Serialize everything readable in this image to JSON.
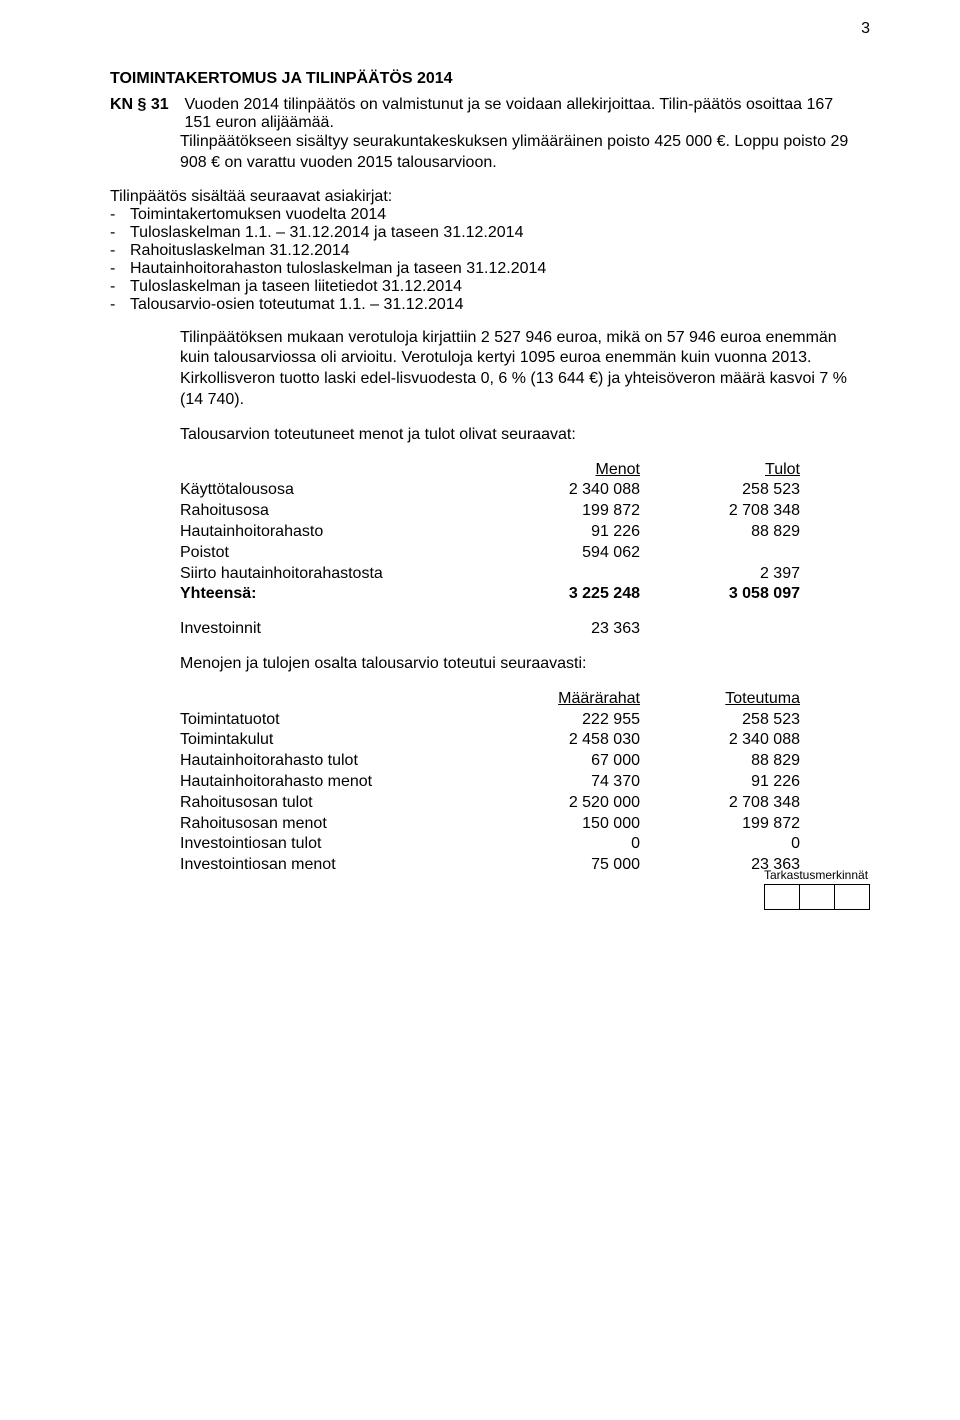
{
  "page_number": "3",
  "heading": "TOIMINTAKERTOMUS JA TILINPÄÄTÖS 2014",
  "kn_label": "KN § 31",
  "para1": "Vuoden 2014 tilinpäätös on valmistunut ja se voidaan allekirjoittaa. Tilin-päätös osoittaa  167 151 euron alijäämää.",
  "para2": "Tilinpäätökseen sisältyy seurakuntakeskuksen ylimääräinen poisto 425 000 €. Loppu poisto 29 908 € on varattu vuoden 2015 talousarvioon.",
  "list_intro": "Tilinpäätös sisältää seuraavat asiakirjat:",
  "list": [
    "Toimintakertomuksen vuodelta 2014",
    "Tuloslaskelman 1.1. – 31.12.2014 ja taseen 31.12.2014",
    "Rahoituslaskelman 31.12.2014",
    "Hautainhoitorahaston tuloslaskelman ja taseen 31.12.2014",
    "Tuloslaskelman ja taseen liitetiedot 31.12.2014",
    "Talousarvio-osien toteutumat 1.1. – 31.12.2014"
  ],
  "para3": "Tilinpäätöksen mukaan verotuloja kirjattiin  2 527 946 euroa, mikä on 57 946 euroa enemmän kuin talousarviossa oli arvioitu. Verotuloja kertyi 1095 euroa enemmän kuin vuonna 2013. Kirkollisveron tuotto laski edel-lisvuodesta 0, 6 % (13 644 €) ja yhteisöveron määrä kasvoi 7 % (14 740).",
  "para4": "Talousarvion toteutuneet menot ja tulot olivat seuraavat:",
  "table1": {
    "head": {
      "c2": "Menot",
      "c3": "Tulot"
    },
    "rows": [
      {
        "c1": "Käyttötalousosa",
        "c2": "2 340 088",
        "c3": "258 523"
      },
      {
        "c1": "Rahoitusosa",
        "c2": "199 872",
        "c3": "2 708 348"
      },
      {
        "c1": "Hautainhoitorahasto",
        "c2": "91 226",
        "c3": "88 829"
      },
      {
        "c1": "Poistot",
        "c2": "594 062",
        "c3": ""
      },
      {
        "c1": "Siirto hautainhoitorahastosta",
        "c2": "",
        "c3": "2 397"
      }
    ],
    "total": {
      "c1": "Yhteensä:",
      "c2": "3 225 248",
      "c3": "3 058 097"
    },
    "invest": {
      "c1": "Investoinnit",
      "c2": "23 363",
      "c3": ""
    }
  },
  "para5": "Menojen ja tulojen osalta talousarvio toteutui seuraavasti:",
  "table2": {
    "head": {
      "c2": "Määrärahat",
      "c3": "Toteutuma"
    },
    "rows": [
      {
        "c1": "Toimintatuotot",
        "c2": "222 955",
        "c3": "258 523"
      },
      {
        "c1": "Toimintakulut",
        "c2": "2 458 030",
        "c3": "2 340 088"
      },
      {
        "c1": "Hautainhoitorahasto tulot",
        "c2": "67 000",
        "c3": "88 829"
      },
      {
        "c1": "Hautainhoitorahasto menot",
        "c2": "74 370",
        "c3": "91 226"
      },
      {
        "c1": "Rahoitusosan tulot",
        "c2": "2 520 000",
        "c3": "2 708 348"
      },
      {
        "c1": "Rahoitusosan menot",
        "c2": "150 000",
        "c3": "199 872"
      },
      {
        "c1": "Investointiosan tulot",
        "c2": "0",
        "c3": "0"
      },
      {
        "c1": "Investointiosan menot",
        "c2": "75 000",
        "c3": "23 363"
      }
    ]
  },
  "footer_label": "Tarkastusmerkinnät",
  "colors": {
    "background": "#ffffff",
    "text": "#000000",
    "border": "#000000"
  },
  "fonts": {
    "family": "Arial",
    "body_size_pt": 12,
    "footer_size_pt": 9
  }
}
